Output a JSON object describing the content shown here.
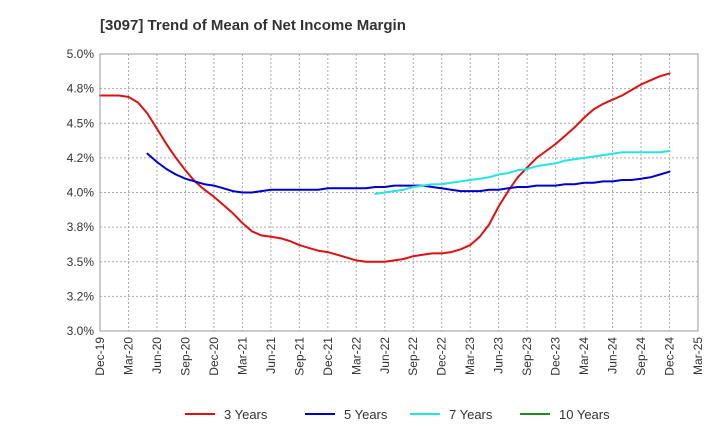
{
  "chart_data": {
    "type": "line",
    "title": "[3097]  Trend of Mean of Net Income Margin",
    "xlabel": "",
    "ylabel": "",
    "ylim": [
      3.0,
      5.0
    ],
    "y_ticks": [
      "3.0%",
      "3.2%",
      "3.5%",
      "3.8%",
      "4.0%",
      "4.2%",
      "4.5%",
      "4.8%",
      "5.0%"
    ],
    "x_ticks": [
      "Dec-19",
      "Mar-20",
      "Jun-20",
      "Sep-20",
      "Dec-20",
      "Mar-21",
      "Jun-21",
      "Sep-21",
      "Dec-21",
      "Mar-22",
      "Jun-22",
      "Sep-22",
      "Dec-22",
      "Mar-23",
      "Jun-23",
      "Sep-23",
      "Dec-23",
      "Mar-24",
      "Jun-24",
      "Sep-24",
      "Dec-24",
      "Mar-25"
    ],
    "grid": true,
    "legend_position": "bottom",
    "series": [
      {
        "name": "3 Years",
        "color": "#dd1111",
        "x": [
          "2019-12",
          "2020-01",
          "2020-02",
          "2020-03",
          "2020-04",
          "2020-05",
          "2020-06",
          "2020-07",
          "2020-08",
          "2020-09",
          "2020-10",
          "2020-11",
          "2020-12",
          "2021-01",
          "2021-02",
          "2021-03",
          "2021-04",
          "2021-05",
          "2021-06",
          "2021-07",
          "2021-08",
          "2021-09",
          "2021-10",
          "2021-11",
          "2021-12",
          "2022-01",
          "2022-02",
          "2022-03",
          "2022-04",
          "2022-05",
          "2022-06",
          "2022-07",
          "2022-08",
          "2022-09",
          "2022-10",
          "2022-11",
          "2022-12",
          "2023-01",
          "2023-02",
          "2023-03",
          "2023-04",
          "2023-05",
          "2023-06",
          "2023-07",
          "2023-08",
          "2023-09",
          "2023-10",
          "2023-11",
          "2023-12",
          "2024-01",
          "2024-02",
          "2024-03",
          "2024-04",
          "2024-05",
          "2024-06",
          "2024-07",
          "2024-08",
          "2024-09",
          "2024-10",
          "2024-11",
          "2024-12"
        ],
        "values": [
          4.7,
          4.7,
          4.7,
          4.69,
          4.65,
          4.57,
          4.46,
          4.35,
          4.25,
          4.16,
          4.08,
          4.02,
          3.97,
          3.91,
          3.85,
          3.78,
          3.72,
          3.69,
          3.68,
          3.67,
          3.65,
          3.62,
          3.6,
          3.58,
          3.57,
          3.55,
          3.53,
          3.51,
          3.5,
          3.5,
          3.5,
          3.51,
          3.52,
          3.54,
          3.55,
          3.56,
          3.56,
          3.57,
          3.59,
          3.62,
          3.68,
          3.77,
          3.9,
          4.01,
          4.11,
          4.18,
          4.25,
          4.3,
          4.35,
          4.41,
          4.47,
          4.54,
          4.6,
          4.64,
          4.67,
          4.7,
          4.74,
          4.78,
          4.81,
          4.84,
          4.86
        ]
      },
      {
        "name": "5 Years",
        "color": "#0000cc",
        "x": [
          "2020-05",
          "2020-06",
          "2020-07",
          "2020-08",
          "2020-09",
          "2020-10",
          "2020-11",
          "2020-12",
          "2021-01",
          "2021-02",
          "2021-03",
          "2021-04",
          "2021-05",
          "2021-06",
          "2021-07",
          "2021-08",
          "2021-09",
          "2021-10",
          "2021-11",
          "2021-12",
          "2022-01",
          "2022-02",
          "2022-03",
          "2022-04",
          "2022-05",
          "2022-06",
          "2022-07",
          "2022-08",
          "2022-09",
          "2022-10",
          "2022-11",
          "2022-12",
          "2023-01",
          "2023-02",
          "2023-03",
          "2023-04",
          "2023-05",
          "2023-06",
          "2023-07",
          "2023-08",
          "2023-09",
          "2023-10",
          "2023-11",
          "2023-12",
          "2024-01",
          "2024-02",
          "2024-03",
          "2024-04",
          "2024-05",
          "2024-06",
          "2024-07",
          "2024-08",
          "2024-09",
          "2024-10",
          "2024-11",
          "2024-12"
        ],
        "values": [
          4.28,
          4.22,
          4.17,
          4.13,
          4.1,
          4.08,
          4.06,
          4.05,
          4.03,
          4.01,
          4.0,
          4.0,
          4.01,
          4.02,
          4.02,
          4.02,
          4.02,
          4.02,
          4.02,
          4.03,
          4.03,
          4.03,
          4.03,
          4.03,
          4.04,
          4.04,
          4.05,
          4.05,
          4.05,
          4.05,
          4.04,
          4.03,
          4.02,
          4.01,
          4.01,
          4.01,
          4.02,
          4.02,
          4.03,
          4.04,
          4.04,
          4.05,
          4.05,
          4.05,
          4.06,
          4.06,
          4.07,
          4.07,
          4.08,
          4.08,
          4.09,
          4.09,
          4.1,
          4.11,
          4.13,
          4.15
        ]
      },
      {
        "name": "7 Years",
        "color": "#22e5e5",
        "x": [
          "2022-05",
          "2022-06",
          "2022-07",
          "2022-08",
          "2022-09",
          "2022-10",
          "2022-11",
          "2022-12",
          "2023-01",
          "2023-02",
          "2023-03",
          "2023-04",
          "2023-05",
          "2023-06",
          "2023-07",
          "2023-08",
          "2023-09",
          "2023-10",
          "2023-11",
          "2023-12",
          "2024-01",
          "2024-02",
          "2024-03",
          "2024-04",
          "2024-05",
          "2024-06",
          "2024-07",
          "2024-08",
          "2024-09",
          "2024-10",
          "2024-11",
          "2024-12"
        ],
        "values": [
          3.99,
          4.0,
          4.01,
          4.02,
          4.04,
          4.05,
          4.06,
          4.06,
          4.07,
          4.08,
          4.09,
          4.1,
          4.11,
          4.13,
          4.14,
          4.16,
          4.17,
          4.19,
          4.2,
          4.21,
          4.23,
          4.24,
          4.25,
          4.26,
          4.27,
          4.28,
          4.29,
          4.29,
          4.29,
          4.29,
          4.29,
          4.3
        ]
      },
      {
        "name": "10 Years",
        "color": "#228822",
        "x": [],
        "values": []
      }
    ]
  }
}
